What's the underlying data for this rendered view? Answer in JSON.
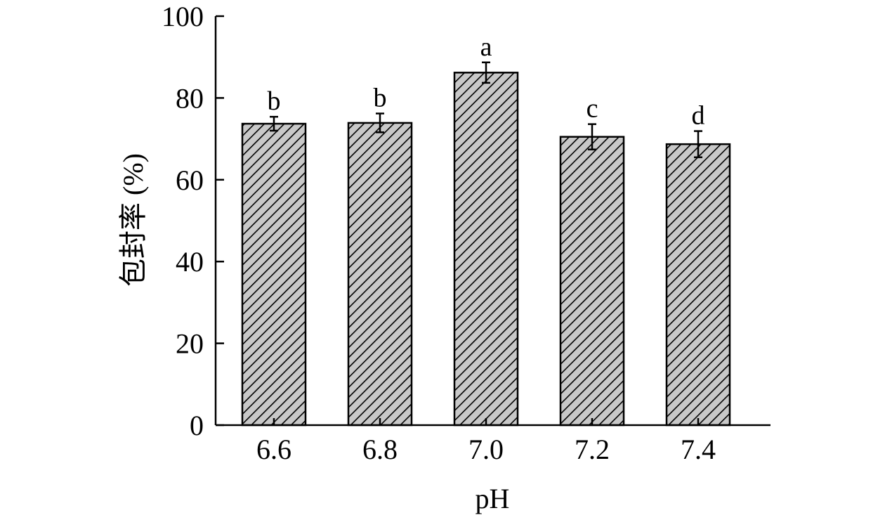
{
  "chart_data": {
    "type": "bar",
    "categories": [
      "6.6",
      "6.8",
      "7.0",
      "7.2",
      "7.4"
    ],
    "values": [
      73.7,
      73.9,
      86.2,
      70.5,
      68.7
    ],
    "errors": [
      1.7,
      2.3,
      2.5,
      3.1,
      3.2
    ],
    "significance": [
      "b",
      "b",
      "a",
      "c",
      "d"
    ],
    "xlabel": "pH",
    "ylabel": "包封率 (%)",
    "ylim": [
      0,
      100
    ],
    "yticks": [
      "0",
      "20",
      "40",
      "60",
      "80",
      "100"
    ],
    "bar_fill": "#c8c8c8",
    "hatch_color": "#000000",
    "grid": false,
    "legend": "none"
  }
}
